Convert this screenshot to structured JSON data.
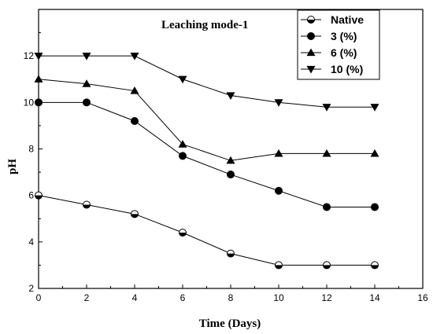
{
  "chart_data": {
    "type": "line",
    "title": "Leaching mode-1",
    "xlabel": "Time (Days)",
    "ylabel": "pH",
    "xlim": [
      0,
      16
    ],
    "ylim": [
      2,
      14
    ],
    "x_ticks": [
      "0",
      "2",
      "4",
      "6",
      "8",
      "10",
      "12",
      "14",
      "16"
    ],
    "y_ticks": [
      "2",
      "4",
      "6",
      "8",
      "10",
      "12"
    ],
    "legend_position": "top-right",
    "grid": false,
    "x": [
      0,
      2,
      4,
      6,
      8,
      10,
      12,
      14
    ],
    "series": [
      {
        "name": "Native",
        "marker": "half-filled-circle",
        "values": [
          6.0,
          5.6,
          5.2,
          4.4,
          3.5,
          3.0,
          3.0,
          3.0
        ]
      },
      {
        "name": "3 (%)",
        "marker": "filled-circle",
        "values": [
          10.0,
          10.0,
          9.2,
          7.7,
          6.9,
          6.2,
          5.5,
          5.5
        ]
      },
      {
        "name": "6 (%)",
        "marker": "triangle-up",
        "values": [
          11.0,
          10.8,
          10.5,
          8.2,
          7.5,
          7.8,
          7.8,
          7.8
        ]
      },
      {
        "name": "10 (%)",
        "marker": "triangle-down",
        "values": [
          12.0,
          12.0,
          12.0,
          11.0,
          10.3,
          10.0,
          9.8,
          9.8
        ]
      }
    ]
  }
}
